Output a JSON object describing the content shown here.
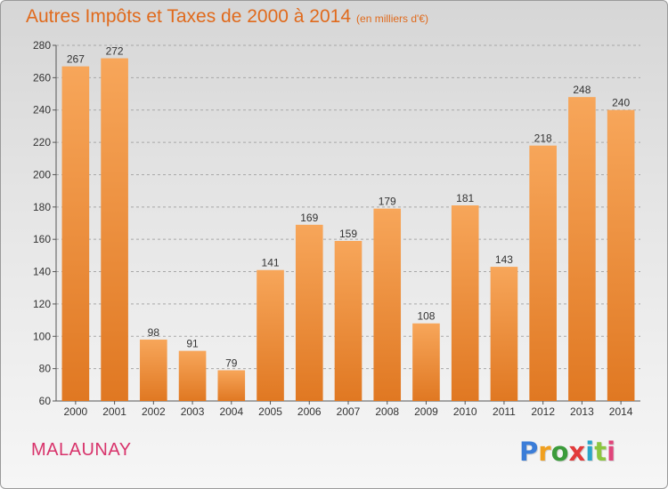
{
  "header": {
    "title": "Autres Impôts et Taxes de 2000 à 2014",
    "subtitle": "(en milliers d'€)"
  },
  "footer": {
    "town": "MALAUNAY",
    "brand_letters": [
      "P",
      "r",
      "o",
      "x",
      "i",
      "t",
      "i"
    ],
    "brand_colors": [
      "#3b7dd8",
      "#f0a020",
      "#3b9b3b",
      "#e23b3b",
      "#2aa5c8",
      "#8cc63f",
      "#e0457b"
    ]
  },
  "colors": {
    "bar_light": "#f7a65a",
    "bar_dark": "#e07822",
    "title": "#e06a1c",
    "town": "#d8336b"
  },
  "chart_data": {
    "type": "bar",
    "title": "Autres Impôts et Taxes de 2000 à 2014",
    "subtitle": "(en milliers d'€)",
    "categories": [
      "2000",
      "2001",
      "2002",
      "2003",
      "2004",
      "2005",
      "2006",
      "2007",
      "2008",
      "2009",
      "2010",
      "2011",
      "2012",
      "2013",
      "2014"
    ],
    "values": [
      267,
      272,
      98,
      91,
      79,
      141,
      169,
      159,
      179,
      108,
      181,
      143,
      218,
      248,
      240
    ],
    "ylim": [
      60,
      280
    ],
    "yticks": [
      60,
      80,
      100,
      120,
      140,
      160,
      180,
      200,
      220,
      240,
      260,
      280
    ],
    "grid": true,
    "data_labels": true
  }
}
